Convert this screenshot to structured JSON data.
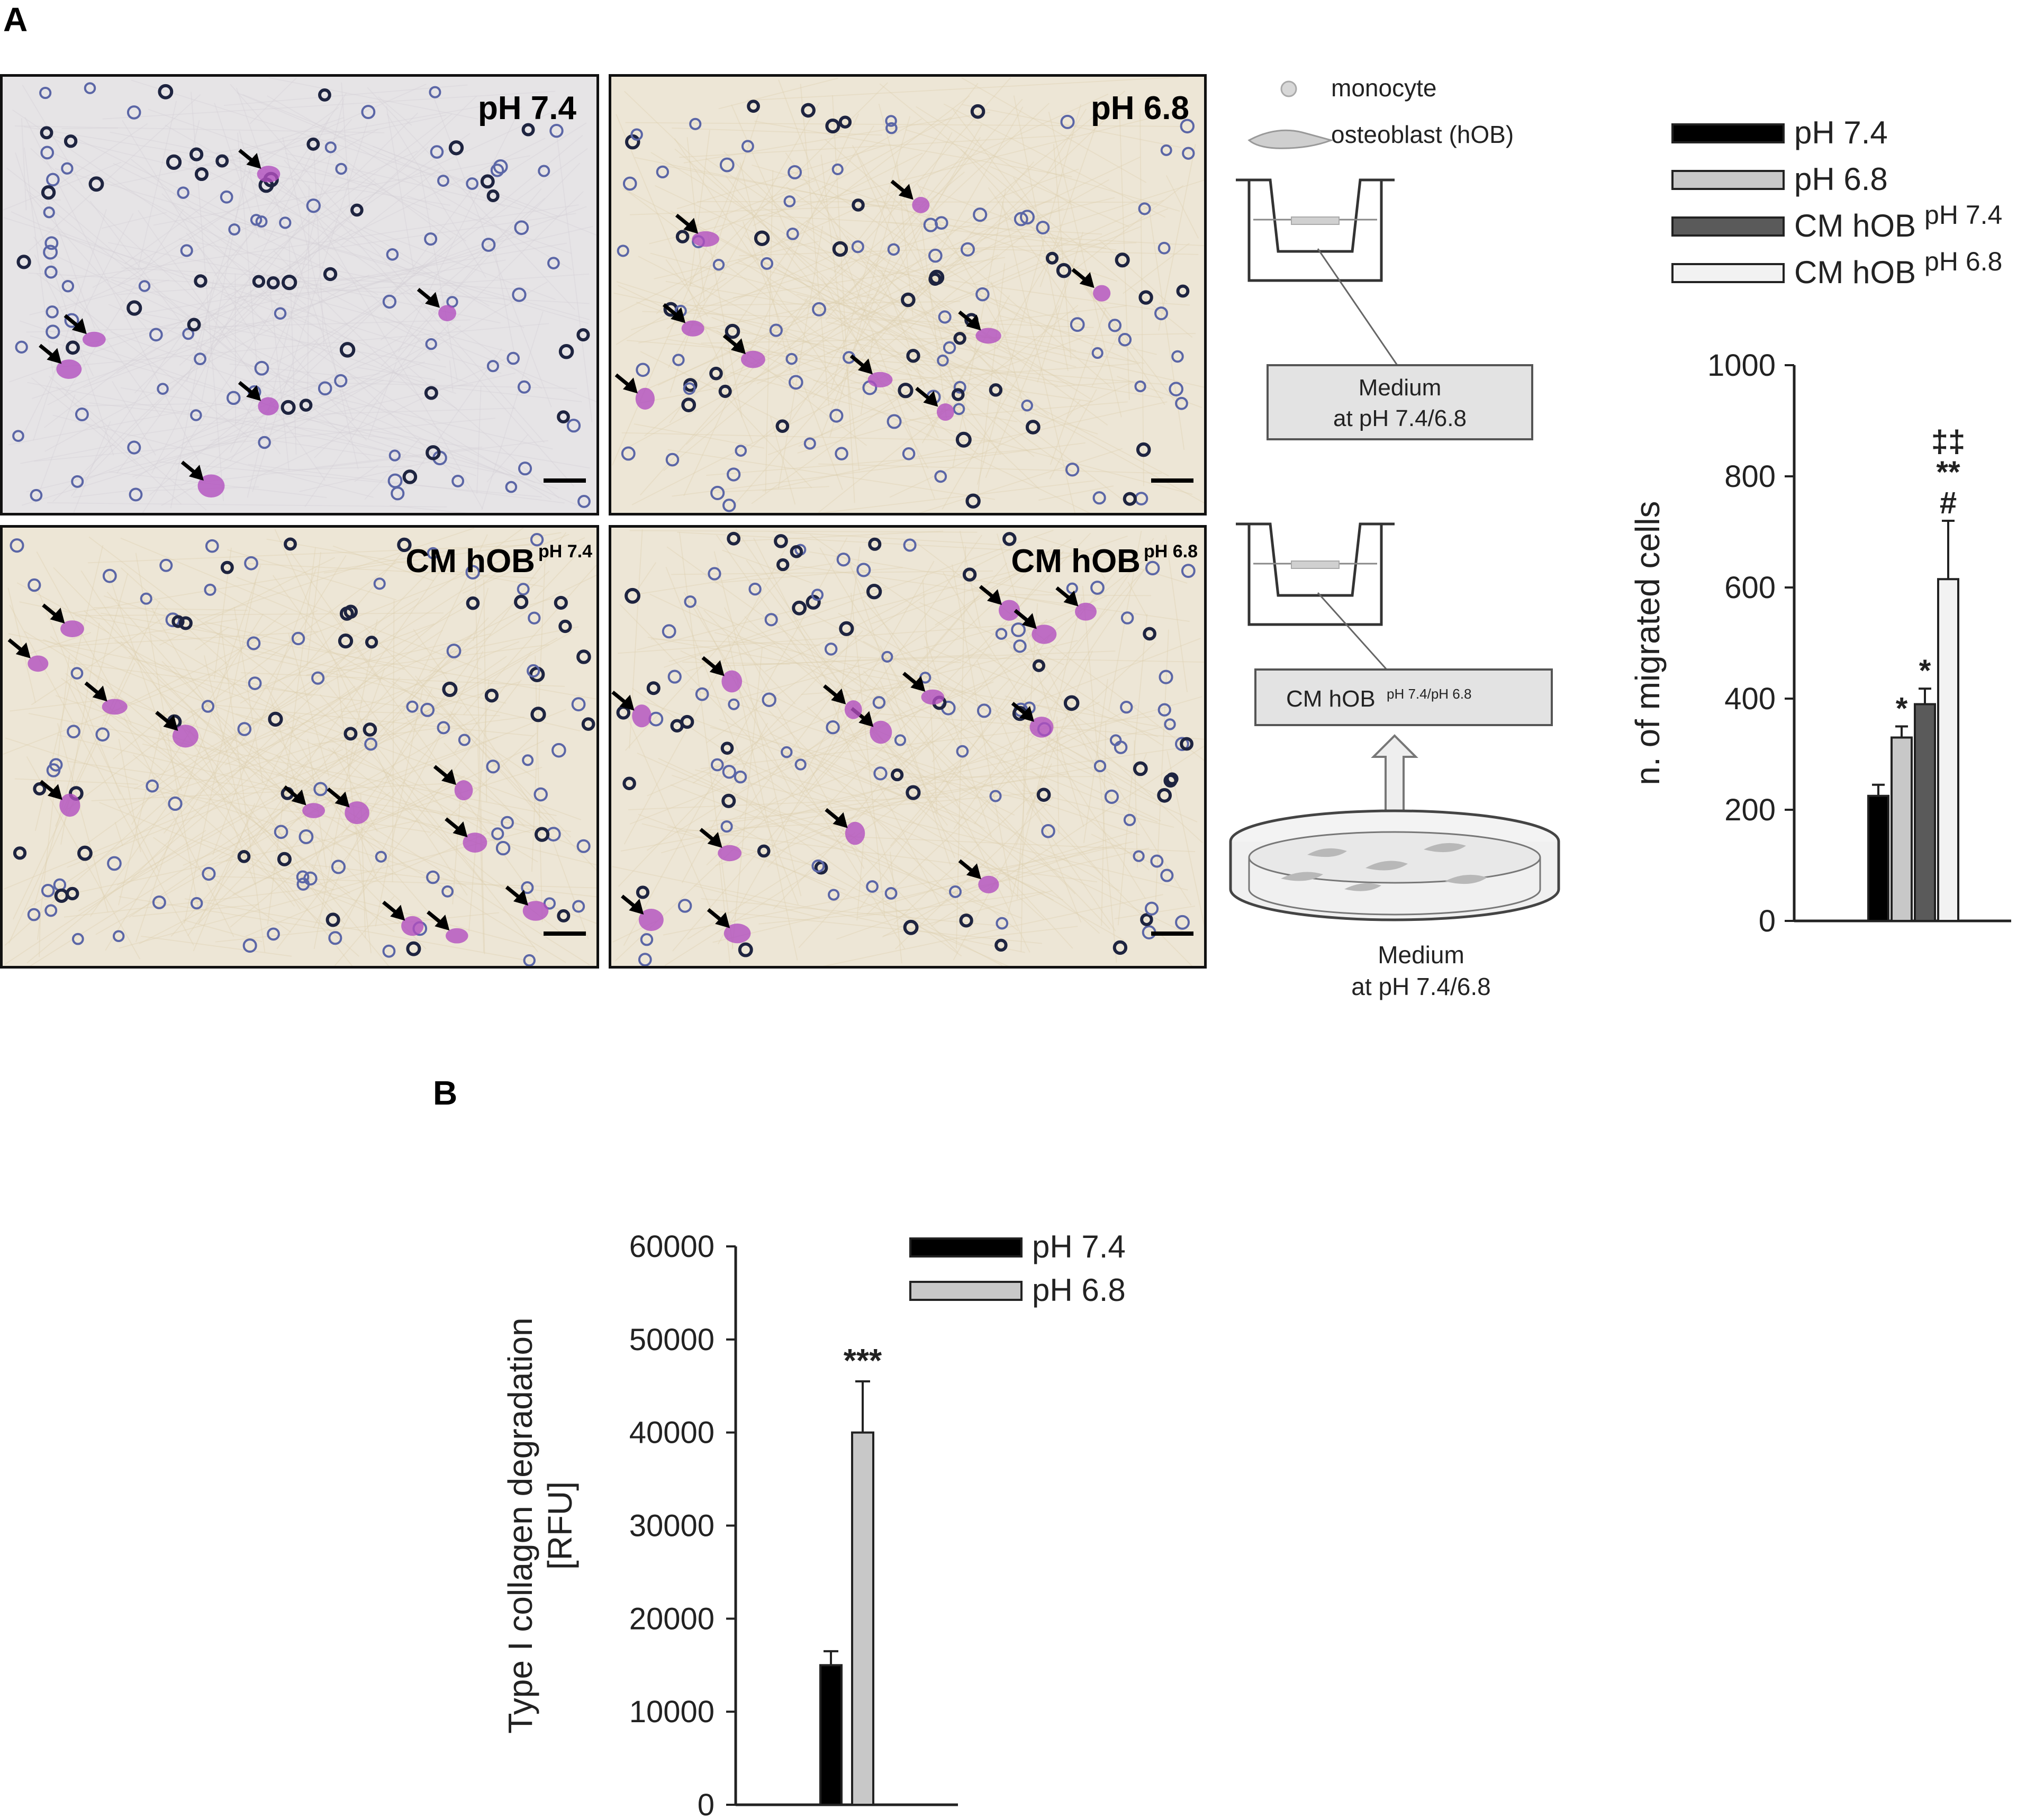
{
  "panel_a": {
    "letter": "A",
    "micrographs": [
      {
        "label": "pH 7.4",
        "label_sup": ""
      },
      {
        "label": "pH 6.8",
        "label_sup": ""
      },
      {
        "label": "CM hOB",
        "label_sup": "pH 7.4"
      },
      {
        "label": "CM hOB",
        "label_sup": "pH 6.8"
      }
    ],
    "diagram": {
      "legend_monocyte": "monocyte",
      "legend_osteoblast": "osteoblast (hOB)",
      "box1_line1": "Medium",
      "box1_line2": "at pH 7.4/6.8",
      "box2_main": "CM hOB",
      "box2_sup": "pH 7.4/pH 6.8",
      "dish_line1": "Medium",
      "dish_line2": "at pH 7.4/6.8"
    }
  },
  "panel_b": {
    "letter": "B"
  },
  "chart_data": [
    {
      "type": "bar",
      "categories": [
        "pH 7.4",
        "pH 6.8",
        "CM hOB pH 7.4",
        "CM hOB pH 6.8"
      ],
      "values": [
        225,
        330,
        390,
        615
      ],
      "errors": [
        20,
        20,
        28,
        105
      ],
      "ylabel": "n. of migrated cells",
      "ylim": [
        0,
        1000
      ],
      "yticks": [
        0,
        200,
        400,
        600,
        800,
        1000
      ],
      "significance": [
        "",
        "*",
        "*",
        "‡‡\n**\n#"
      ],
      "legend": [
        {
          "label": "pH 7.4",
          "label_sup": "",
          "color": "#000000"
        },
        {
          "label": "pH 6.8",
          "label_sup": "",
          "color": "#c8c8c8"
        },
        {
          "label": "CM hOB",
          "label_sup": "pH 7.4",
          "color": "#5a5a5a"
        },
        {
          "label": "CM hOB",
          "label_sup": "pH 6.8",
          "color": "#f2f2f2"
        }
      ],
      "legend_position": "top"
    },
    {
      "type": "bar",
      "categories": [
        "pH 7.4",
        "pH 6.8"
      ],
      "values": [
        15000,
        40000
      ],
      "errors": [
        1500,
        5500
      ],
      "ylabel_line1": "Type I collagen degradation",
      "ylabel_line2": "[RFU]",
      "ylim": [
        0,
        60000
      ],
      "yticks": [
        "0",
        "10000",
        "20000",
        "30000",
        "40000",
        "50000",
        "60000"
      ],
      "significance": [
        "",
        "***"
      ],
      "legend": [
        {
          "label": "pH 7.4",
          "color": "#000000"
        },
        {
          "label": "pH 6.8",
          "color": "#c8c8c8"
        }
      ],
      "legend_position": "top-right"
    }
  ]
}
